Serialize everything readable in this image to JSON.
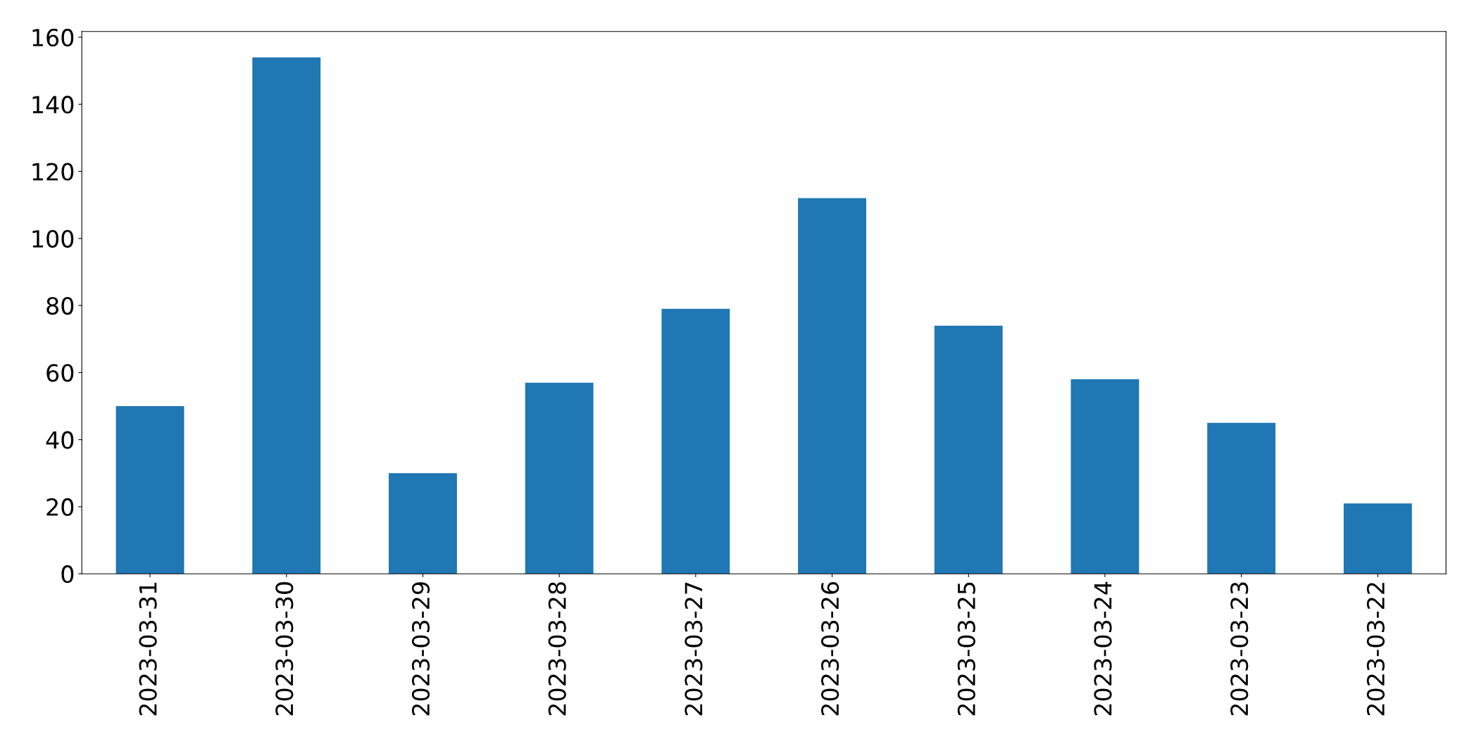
{
  "chart_data": {
    "type": "bar",
    "categories": [
      "2023-03-31",
      "2023-03-30",
      "2023-03-29",
      "2023-03-28",
      "2023-03-27",
      "2023-03-26",
      "2023-03-25",
      "2023-03-24",
      "2023-03-23",
      "2023-03-22"
    ],
    "values": [
      50,
      154,
      30,
      57,
      79,
      112,
      74,
      58,
      45,
      21
    ],
    "color": "#1f77b4",
    "ylim": [
      0,
      161.7
    ],
    "yticks": [
      0,
      20,
      40,
      60,
      80,
      100,
      120,
      140,
      160
    ],
    "grid": false,
    "legend": false
  }
}
